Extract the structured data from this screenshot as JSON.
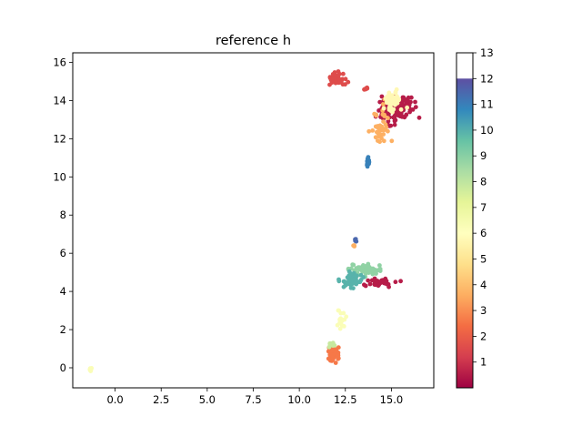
{
  "chart_data": {
    "type": "scatter",
    "title": "reference h",
    "xlabel": "",
    "ylabel": "",
    "xlim": [
      -2.3,
      17.3
    ],
    "ylim": [
      -1.05,
      16.5
    ],
    "x_ticks": [
      0.0,
      2.5,
      5.0,
      7.5,
      10.0,
      12.5,
      15.0
    ],
    "x_tick_labels": [
      "0.0",
      "2.5",
      "5.0",
      "7.5",
      "10.0",
      "12.5",
      "15.0"
    ],
    "y_ticks": [
      0,
      2,
      4,
      6,
      8,
      10,
      12,
      14,
      16
    ],
    "y_tick_labels": [
      "0",
      "2",
      "4",
      "6",
      "8",
      "10",
      "12",
      "14",
      "16"
    ],
    "grid": false,
    "colormap": "Spectral",
    "colorbar": {
      "range": [
        0,
        13
      ],
      "filled_max": 12,
      "ticks": [
        1,
        2,
        3,
        4,
        5,
        6,
        7,
        8,
        9,
        10,
        11,
        12,
        13
      ],
      "tick_labels": [
        "1",
        "2",
        "3",
        "4",
        "5",
        "6",
        "7",
        "8",
        "9",
        "10",
        "11",
        "12",
        "13"
      ]
    },
    "clusters": [
      {
        "value": 1,
        "center": [
          15.2,
          13.6
        ],
        "spread": [
          0.7,
          0.55
        ],
        "count": 160
      },
      {
        "value": 1,
        "center": [
          14.3,
          4.5
        ],
        "spread": [
          0.65,
          0.2
        ],
        "count": 40
      },
      {
        "value": 2,
        "center": [
          12.0,
          15.1
        ],
        "spread": [
          0.35,
          0.3
        ],
        "count": 45
      },
      {
        "value": 2,
        "center": [
          13.6,
          14.6
        ],
        "spread": [
          0.1,
          0.08
        ],
        "count": 6
      },
      {
        "value": 3,
        "center": [
          11.85,
          0.7
        ],
        "spread": [
          0.25,
          0.35
        ],
        "count": 45
      },
      {
        "value": 4,
        "center": [
          14.5,
          12.7
        ],
        "spread": [
          0.4,
          0.9
        ],
        "count": 40
      },
      {
        "value": 4,
        "center": [
          13.0,
          6.4
        ],
        "spread": [
          0.06,
          0.08
        ],
        "count": 4
      },
      {
        "value": 6,
        "center": [
          15.1,
          14.0
        ],
        "spread": [
          0.4,
          0.45
        ],
        "count": 55
      },
      {
        "value": 6.5,
        "center": [
          12.3,
          2.5
        ],
        "spread": [
          0.2,
          0.45
        ],
        "count": 20
      },
      {
        "value": 6.5,
        "center": [
          -1.3,
          -0.1
        ],
        "spread": [
          0.1,
          0.1
        ],
        "count": 6
      },
      {
        "value": 8,
        "center": [
          11.8,
          1.2
        ],
        "spread": [
          0.15,
          0.1
        ],
        "count": 10
      },
      {
        "value": 9,
        "center": [
          13.6,
          5.15
        ],
        "spread": [
          0.75,
          0.25
        ],
        "count": 55
      },
      {
        "value": 10,
        "center": [
          12.8,
          4.55
        ],
        "spread": [
          0.45,
          0.35
        ],
        "count": 55
      },
      {
        "value": 11,
        "center": [
          13.7,
          10.7
        ],
        "spread": [
          0.12,
          0.25
        ],
        "count": 14
      },
      {
        "value": 11.5,
        "center": [
          13.05,
          6.7
        ],
        "spread": [
          0.04,
          0.07
        ],
        "count": 4
      }
    ]
  }
}
